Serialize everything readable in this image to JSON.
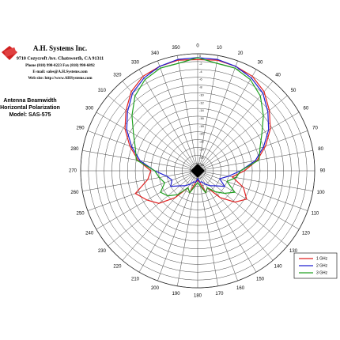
{
  "header": {
    "company": "A.H. Systems Inc.",
    "address": "9710 Cozycroft Ave. Chatsworth, CA 91311",
    "phone": "Phone (818) 998-0223 Fax (818) 998-6892",
    "email": "E-mail: sales@A.H.Systems.com",
    "web": "Web site: http://www.AHSystems.com"
  },
  "chart_data": {
    "type": "polar",
    "title": [
      "Antenna Beamwidth",
      "Horizontal Polarization",
      "Model: SAS-575"
    ],
    "angles": [
      0,
      10,
      20,
      30,
      40,
      50,
      60,
      70,
      80,
      90,
      100,
      110,
      120,
      130,
      140,
      150,
      160,
      170,
      180,
      190,
      200,
      210,
      220,
      230,
      240,
      250,
      260,
      270,
      280,
      290,
      300,
      310,
      320,
      330,
      340,
      350
    ],
    "rlim": [
      -30,
      0
    ],
    "rticks": [
      -28,
      -26,
      -24,
      -22,
      -20,
      -18,
      -16,
      -14,
      -12,
      -10,
      -8,
      -6,
      -4,
      -2,
      0
    ],
    "legend": "lower right",
    "series": [
      {
        "name": "1 GHz",
        "color": "#e02020",
        "values": [
          -1.5,
          -1.2,
          -1.5,
          -2,
          -3.5,
          -6,
          -8.5,
          -11.5,
          -14.5,
          -18,
          -21,
          -17.5,
          -15.5,
          -17.5,
          -21,
          -25,
          -24,
          -27,
          -27.5,
          -27,
          -24,
          -25,
          -21,
          -17,
          -15,
          -13,
          -17,
          -18,
          -14.5,
          -11.5,
          -8.5,
          -6,
          -3.5,
          -2,
          -1.5,
          -1.2
        ]
      },
      {
        "name": "2 GHz",
        "color": "#2020d0",
        "values": [
          -1,
          -1,
          -1.5,
          -2.5,
          -4,
          -6.5,
          -9,
          -12,
          -15,
          -19,
          -22,
          -24,
          -22,
          -24,
          -25,
          -26,
          -27,
          -27,
          -28,
          -27,
          -27,
          -26,
          -25,
          -24,
          -22,
          -23,
          -22,
          -19,
          -15,
          -12,
          -9,
          -6.5,
          -4,
          -2.5,
          -1.5,
          -1
        ]
      },
      {
        "name": "3 GHz",
        "color": "#20a020",
        "values": [
          -1,
          -2,
          -2,
          -3,
          -5,
          -8,
          -11,
          -13,
          -14,
          -19,
          -20,
          -22,
          -19,
          -21,
          -23,
          -25,
          -24,
          -26,
          -27,
          -26,
          -24,
          -25,
          -22,
          -20,
          -19,
          -21,
          -20,
          -19,
          -14,
          -13,
          -11,
          -8,
          -5,
          -3,
          -2,
          -2
        ]
      }
    ]
  }
}
